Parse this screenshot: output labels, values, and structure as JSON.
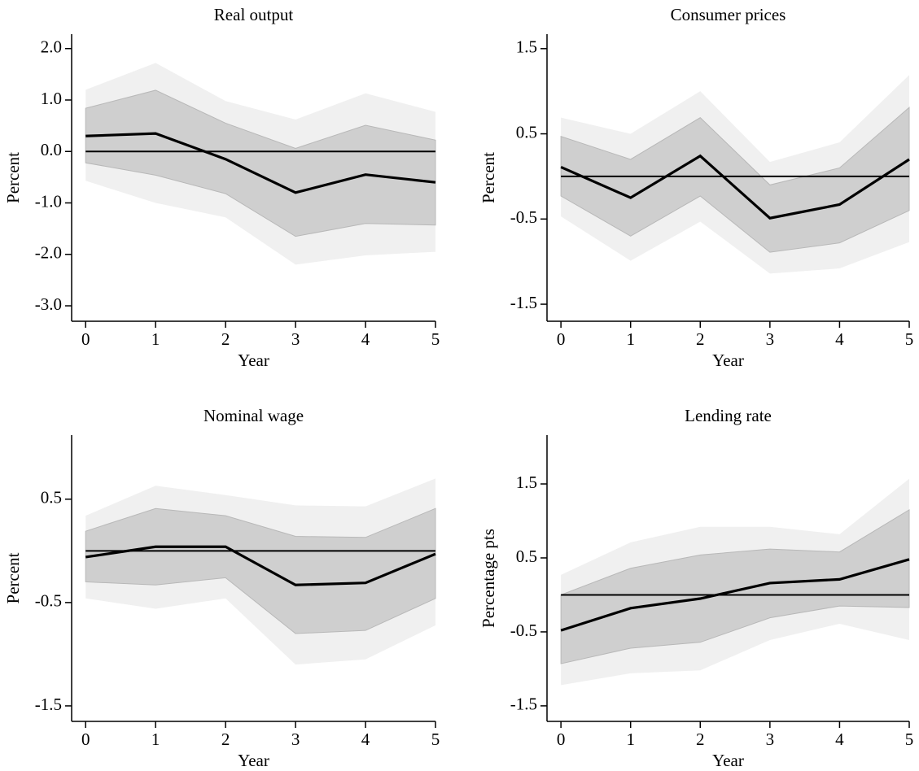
{
  "chart_data": [
    {
      "type": "line",
      "title": "Real output",
      "xlabel": "Year",
      "ylabel": "Percent",
      "x": [
        0,
        1,
        2,
        3,
        4,
        5
      ],
      "xlim": [
        -0.2,
        5
      ],
      "xticks": [
        0,
        1,
        2,
        3,
        4,
        5
      ],
      "ylim": [
        -3.3,
        2.28
      ],
      "yticks": [
        {
          "value": 2,
          "label": "2.0"
        },
        {
          "value": 1,
          "label": "1.0"
        },
        {
          "value": 0,
          "label": "0.0"
        },
        {
          "value": -1,
          "label": "-1.0"
        },
        {
          "value": -2,
          "label": "-2.0"
        },
        {
          "value": -3,
          "label": "-3.0"
        }
      ],
      "hline": 0,
      "color": "#000000",
      "values": [
        0.3,
        0.35,
        -0.15,
        -0.8,
        -0.45,
        -0.6
      ],
      "bands": [
        {
          "color": "#f0f0f0",
          "upper": [
            1.2,
            1.72,
            0.98,
            0.62,
            1.13,
            0.77
          ],
          "lower": [
            -0.57,
            -1.0,
            -1.28,
            -2.2,
            -2.02,
            -1.95
          ]
        },
        {
          "color": "#cfcfcf",
          "upper": [
            0.84,
            1.19,
            0.55,
            0.06,
            0.51,
            0.22
          ],
          "lower": [
            -0.22,
            -0.46,
            -0.82,
            -1.65,
            -1.4,
            -1.43
          ]
        }
      ]
    },
    {
      "type": "line",
      "title": "Consumer prices",
      "xlabel": "Year",
      "ylabel": "Percent",
      "x": [
        0,
        1,
        2,
        3,
        4,
        5
      ],
      "xlim": [
        -0.2,
        5
      ],
      "xticks": [
        0,
        1,
        2,
        3,
        4,
        5
      ],
      "ylim": [
        -1.7,
        1.67
      ],
      "yticks": [
        1.5,
        0.5,
        -0.5,
        -1.5
      ],
      "hline": 0,
      "color": "#000000",
      "values": [
        0.11,
        -0.25,
        0.24,
        -0.49,
        -0.33,
        0.2
      ],
      "bands": [
        {
          "color": "#f0f0f0",
          "upper": [
            0.69,
            0.5,
            1.0,
            0.17,
            0.4,
            1.19
          ],
          "lower": [
            -0.47,
            -0.99,
            -0.53,
            -1.14,
            -1.08,
            -0.77
          ]
        },
        {
          "color": "#cfcfcf",
          "upper": [
            0.47,
            0.2,
            0.69,
            -0.1,
            0.1,
            0.81
          ],
          "lower": [
            -0.23,
            -0.7,
            -0.23,
            -0.89,
            -0.78,
            -0.4
          ]
        }
      ]
    },
    {
      "type": "line",
      "title": "Nominal wage",
      "xlabel": "Year",
      "ylabel": "Percent",
      "x": [
        0,
        1,
        2,
        3,
        4,
        5
      ],
      "xlim": [
        -0.2,
        5
      ],
      "xticks": [
        0,
        1,
        2,
        3,
        4,
        5
      ],
      "ylim": [
        -1.65,
        1.12
      ],
      "yticks": [
        0.5,
        -0.5,
        -1.5
      ],
      "hline": 0,
      "color": "#000000",
      "values": [
        -0.06,
        0.04,
        0.04,
        -0.33,
        -0.31,
        -0.03
      ],
      "bands": [
        {
          "color": "#f0f0f0",
          "upper": [
            0.34,
            0.63,
            0.54,
            0.44,
            0.43,
            0.7
          ],
          "lower": [
            -0.46,
            -0.56,
            -0.46,
            -1.1,
            -1.05,
            -0.72
          ]
        },
        {
          "color": "#cfcfcf",
          "upper": [
            0.19,
            0.41,
            0.34,
            0.14,
            0.13,
            0.41
          ],
          "lower": [
            -0.3,
            -0.33,
            -0.26,
            -0.8,
            -0.77,
            -0.46
          ]
        }
      ]
    },
    {
      "type": "line",
      "title": "Lending rate",
      "xlabel": "Year",
      "ylabel": "Percentage pts",
      "x": [
        0,
        1,
        2,
        3,
        4,
        5
      ],
      "xlim": [
        -0.2,
        5
      ],
      "xticks": [
        0,
        1,
        2,
        3,
        4,
        5
      ],
      "ylim": [
        -1.71,
        2.16
      ],
      "yticks": [
        1.5,
        0.5,
        -0.5,
        -1.5
      ],
      "hline": 0,
      "color": "#000000",
      "values": [
        -0.48,
        -0.18,
        -0.05,
        0.16,
        0.21,
        0.48
      ],
      "bands": [
        {
          "color": "#f0f0f0",
          "upper": [
            0.27,
            0.71,
            0.92,
            0.92,
            0.82,
            1.57
          ],
          "lower": [
            -1.22,
            -1.06,
            -1.02,
            -0.61,
            -0.39,
            -0.61
          ]
        },
        {
          "color": "#cfcfcf",
          "upper": [
            0.0,
            0.36,
            0.54,
            0.62,
            0.58,
            1.15
          ],
          "lower": [
            -0.93,
            -0.72,
            -0.64,
            -0.31,
            -0.15,
            -0.17
          ]
        }
      ]
    }
  ]
}
